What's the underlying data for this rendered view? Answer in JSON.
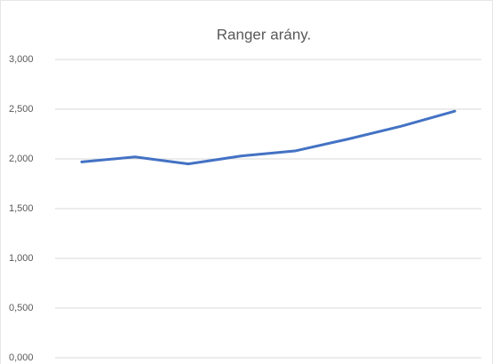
{
  "chart_data": {
    "type": "line",
    "title": "Ranger arány.",
    "categories": [
      null,
      null,
      null,
      null,
      null,
      null,
      null,
      null
    ],
    "series": [
      {
        "name": "Ranger arány.",
        "color": "#4472c4",
        "values": [
          1.97,
          2.02,
          1.95,
          2.03,
          2.08,
          2.2,
          2.33,
          2.48
        ]
      }
    ],
    "ylim": [
      0,
      3
    ],
    "yticks": [
      {
        "value": 0,
        "label": "0,000"
      },
      {
        "value": 0.5,
        "label": "0,500"
      },
      {
        "value": 1,
        "label": "1,000"
      },
      {
        "value": 1.5,
        "label": "1,500"
      },
      {
        "value": 2,
        "label": "2,000"
      },
      {
        "value": 2.5,
        "label": "2,500"
      },
      {
        "value": 3,
        "label": "3,000"
      }
    ],
    "grid": true
  }
}
